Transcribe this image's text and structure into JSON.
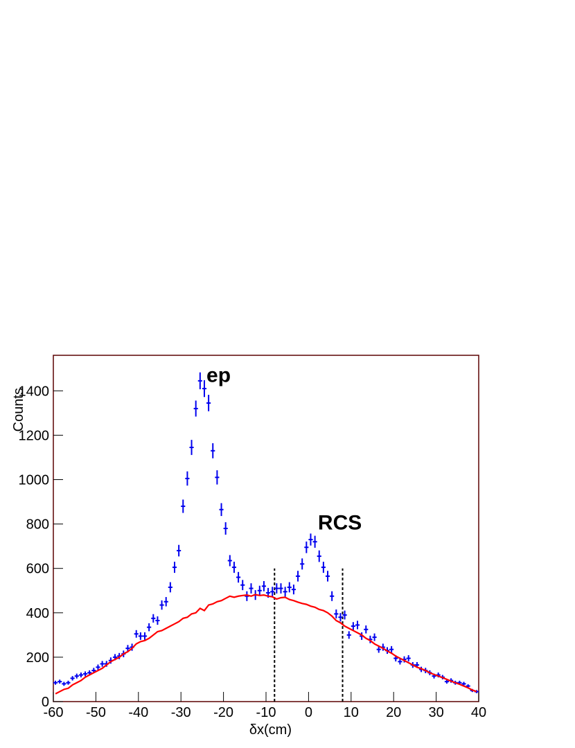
{
  "chart_data": {
    "type": "errorbar",
    "x_label": "δx(cm)",
    "y_label": "Counts",
    "xlim": [
      -60,
      40
    ],
    "ylim": [
      0,
      1560
    ],
    "xticks": [
      -60,
      -50,
      -40,
      -30,
      -20,
      -10,
      0,
      10,
      20,
      30,
      40
    ],
    "yticks": [
      0,
      200,
      400,
      600,
      800,
      1000,
      1200,
      1400
    ],
    "xerr": 0.5,
    "x": [
      -59.5,
      -58.5,
      -57.5,
      -56.5,
      -55.5,
      -54.5,
      -53.5,
      -52.5,
      -51.5,
      -50.5,
      -49.5,
      -48.5,
      -47.5,
      -46.5,
      -45.5,
      -44.5,
      -43.5,
      -42.5,
      -41.5,
      -40.5,
      -39.5,
      -38.5,
      -37.5,
      -36.5,
      -35.5,
      -34.5,
      -33.5,
      -32.5,
      -31.5,
      -30.5,
      -29.5,
      -28.5,
      -27.5,
      -26.5,
      -25.5,
      -24.5,
      -23.5,
      -22.5,
      -21.5,
      -20.5,
      -19.5,
      -18.5,
      -17.5,
      -16.5,
      -15.5,
      -14.5,
      -13.5,
      -12.5,
      -11.5,
      -10.5,
      -9.5,
      -8.5,
      -7.5,
      -6.5,
      -5.5,
      -4.5,
      -3.5,
      -2.5,
      -1.5,
      -0.5,
      0.5,
      1.5,
      2.5,
      3.5,
      4.5,
      5.5,
      6.5,
      7.5,
      8.5,
      9.5,
      10.5,
      11.5,
      12.5,
      13.5,
      14.5,
      15.5,
      16.5,
      17.5,
      18.5,
      19.5,
      20.5,
      21.5,
      22.5,
      23.5,
      24.5,
      25.5,
      26.5,
      27.5,
      28.5,
      29.5,
      30.5,
      31.5,
      32.5,
      33.5,
      34.5,
      35.5,
      36.5,
      37.5,
      38.5,
      39.5
    ],
    "series": [
      {
        "style": "points",
        "color": "#0000ee",
        "values": [
          85,
          90,
          80,
          85,
          105,
          115,
          120,
          125,
          130,
          140,
          155,
          170,
          170,
          185,
          200,
          205,
          215,
          240,
          245,
          305,
          295,
          295,
          335,
          375,
          365,
          435,
          450,
          515,
          605,
          680,
          880,
          1005,
          1145,
          1320,
          1445,
          1410,
          1345,
          1130,
          1010,
          865,
          780,
          635,
          605,
          560,
          525,
          475,
          510,
          480,
          500,
          520,
          490,
          495,
          510,
          510,
          495,
          515,
          505,
          565,
          620,
          695,
          730,
          720,
          655,
          605,
          565,
          475,
          395,
          380,
          390,
          300,
          340,
          345,
          295,
          325,
          280,
          290,
          235,
          245,
          230,
          235,
          195,
          180,
          190,
          195,
          165,
          165,
          145,
          140,
          130,
          115,
          120,
          110,
          90,
          95,
          85,
          85,
          80,
          70,
          50,
          45
        ],
        "errors": [
          9,
          9,
          9,
          9,
          10,
          11,
          11,
          11,
          11,
          12,
          12,
          13,
          13,
          14,
          14,
          14,
          15,
          15,
          16,
          17,
          17,
          17,
          18,
          19,
          19,
          21,
          21,
          23,
          25,
          26,
          30,
          32,
          34,
          36,
          38,
          38,
          37,
          34,
          32,
          29,
          28,
          25,
          25,
          24,
          23,
          22,
          23,
          22,
          22,
          23,
          22,
          22,
          23,
          23,
          22,
          23,
          22,
          24,
          25,
          26,
          27,
          27,
          26,
          25,
          24,
          22,
          20,
          19,
          20,
          17,
          18,
          19,
          17,
          18,
          17,
          17,
          15,
          16,
          15,
          15,
          14,
          13,
          14,
          14,
          13,
          13,
          12,
          12,
          11,
          11,
          11,
          10,
          9,
          10,
          9,
          9,
          9,
          8,
          7,
          7
        ]
      },
      {
        "style": "line",
        "color": "#ff0000",
        "values": [
          35,
          45,
          55,
          60,
          75,
          85,
          95,
          110,
          120,
          130,
          140,
          150,
          165,
          180,
          190,
          200,
          215,
          225,
          240,
          260,
          270,
          275,
          285,
          300,
          315,
          320,
          330,
          340,
          350,
          360,
          375,
          380,
          395,
          400,
          420,
          410,
          435,
          440,
          450,
          455,
          465,
          475,
          470,
          475,
          478,
          480,
          475,
          482,
          478,
          480,
          475,
          472,
          462,
          468,
          470,
          460,
          455,
          448,
          442,
          438,
          430,
          425,
          415,
          410,
          400,
          385,
          365,
          355,
          340,
          330,
          320,
          310,
          300,
          285,
          275,
          260,
          250,
          240,
          228,
          218,
          205,
          195,
          185,
          175,
          165,
          155,
          148,
          140,
          130,
          122,
          115,
          108,
          100,
          92,
          85,
          78,
          70,
          62,
          52,
          45
        ]
      }
    ],
    "vlines": [
      {
        "x": -8,
        "y": 600
      },
      {
        "x": 8,
        "y": 600
      }
    ],
    "annotations": [
      {
        "text": "ep",
        "x": -24,
        "y": 1440
      },
      {
        "text": "RCS",
        "x": 2.2,
        "y": 775
      }
    ]
  }
}
